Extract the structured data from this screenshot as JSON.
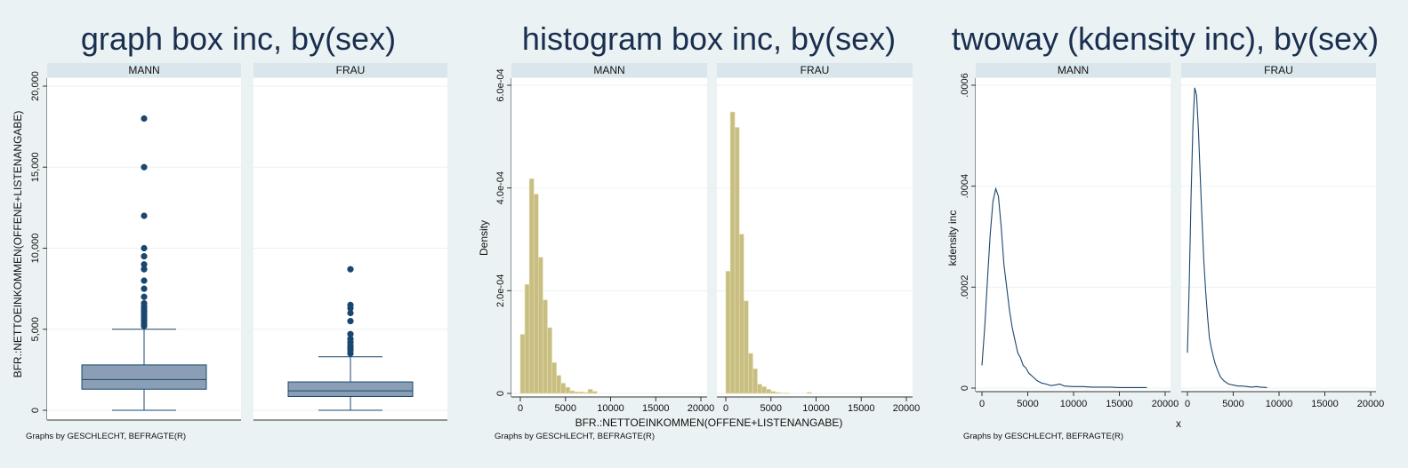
{
  "colors": {
    "background": "#eaf2f3",
    "strip": "#d9e6eb",
    "box": "#8a9fb5",
    "line": "#1a476f",
    "hist": "#c8be82",
    "title": "#1a2e4f"
  },
  "chart_data": [
    {
      "type": "box",
      "title": "graph box inc, by(sex)",
      "ylabel": "BFR.:NETTOEINKOMMEN(OFFENE+LISTENANGABE)",
      "xlabel": "",
      "ylim": [
        0,
        20000
      ],
      "yticks": [
        0,
        5000,
        10000,
        15000,
        20000
      ],
      "ytick_labels": [
        "0",
        "5,000",
        "10,000",
        "15,000",
        "20,000"
      ],
      "panels": [
        "MANN",
        "FRAU"
      ],
      "note": "Graphs by GESCHLECHT, BEFRAGTE(R)",
      "series": [
        {
          "name": "MANN",
          "min": 0,
          "q1": 1300,
          "median": 1900,
          "q3": 2800,
          "max": 5000,
          "outliers": [
            5200,
            5350,
            5500,
            5650,
            5800,
            5950,
            6100,
            6250,
            6400,
            6600,
            7000,
            7500,
            8000,
            8700,
            9000,
            9500,
            10000,
            12000,
            15000,
            18000
          ]
        },
        {
          "name": "FRAU",
          "min": 0,
          "q1": 850,
          "median": 1200,
          "q3": 1750,
          "max": 3300,
          "outliers": [
            3500,
            3700,
            3850,
            4000,
            4200,
            4400,
            4700,
            5500,
            6000,
            6300,
            6500,
            8700
          ]
        }
      ]
    },
    {
      "type": "bar",
      "title": "histogram box inc, by(sex)",
      "ylabel": "Density",
      "xlabel": "BFR.:NETTOEINKOMMEN(OFFENE+LISTENANGABE)",
      "xlim": [
        0,
        20000
      ],
      "ylim": [
        0,
        0.0006
      ],
      "xticks": [
        0,
        5000,
        10000,
        15000,
        20000
      ],
      "xtick_labels": [
        "0",
        "5000",
        "10000",
        "15000",
        "20000"
      ],
      "yticks": [
        0,
        0.0002,
        0.0004,
        0.0006
      ],
      "ytick_labels": [
        "0",
        "2.0e-04",
        "4.0e-04",
        "6.0e-04"
      ],
      "bin_width": 500,
      "x": [
        0,
        500,
        1000,
        1500,
        2000,
        2500,
        3000,
        3500,
        4000,
        4500,
        5000,
        5500,
        6000,
        6500,
        7000,
        7500,
        8000,
        8500,
        9000,
        9500,
        10000,
        10500,
        11000
      ],
      "panels": [
        "MANN",
        "FRAU"
      ],
      "note": "Graphs by GESCHLECHT, BEFRAGTE(R)",
      "series": [
        {
          "name": "MANN",
          "values": [
            0.000115,
            0.000212,
            0.000418,
            0.000388,
            0.000265,
            0.000182,
            0.000128,
            6e-05,
            3.5e-05,
            2e-05,
            1.2e-05,
            5e-06,
            3e-06,
            3e-06,
            2e-06,
            8e-06,
            4e-06,
            0,
            0,
            0,
            0,
            0,
            0
          ]
        },
        {
          "name": "FRAU",
          "values": [
            0.000238,
            0.000548,
            0.000518,
            0.00031,
            0.00018,
            7.8e-05,
            4.8e-05,
            1.8e-05,
            1.3e-05,
            8e-06,
            4e-06,
            2e-06,
            1e-06,
            1e-06,
            0,
            0,
            0,
            0,
            2e-06,
            0,
            0,
            0,
            0
          ]
        }
      ]
    },
    {
      "type": "line",
      "title": "twoway (kdensity inc), by(sex)",
      "ylabel": "kdensity inc",
      "xlabel": "x",
      "xlim": [
        0,
        20000
      ],
      "ylim": [
        0,
        0.0006
      ],
      "xticks": [
        0,
        5000,
        10000,
        15000,
        20000
      ],
      "xtick_labels": [
        "0",
        "5000",
        "10000",
        "15000",
        "20000"
      ],
      "yticks": [
        0,
        0.0002,
        0.0004,
        0.0006
      ],
      "ytick_labels": [
        "0",
        ".0002",
        ".0004",
        ".0006"
      ],
      "panels": [
        "MANN",
        "FRAU"
      ],
      "note": "Graphs by GESCHLECHT, BEFRAGTE(R)",
      "series": [
        {
          "name": "MANN",
          "x": [
            0,
            300,
            600,
            900,
            1200,
            1500,
            1800,
            2100,
            2400,
            2700,
            3000,
            3300,
            3600,
            3900,
            4200,
            4500,
            4800,
            5100,
            5400,
            5700,
            6000,
            6500,
            7000,
            7500,
            8000,
            8500,
            9000,
            10000,
            11000,
            12000,
            13000,
            14000,
            15000,
            16000,
            17000,
            18000
          ],
          "y": [
            4.5e-05,
            0.00012,
            0.000215,
            0.000305,
            0.00037,
            0.000395,
            0.00038,
            0.00032,
            0.000245,
            0.0002,
            0.000155,
            0.00012,
            9.5e-05,
            7e-05,
            6e-05,
            4.5e-05,
            4e-05,
            3e-05,
            2.5e-05,
            2e-05,
            1.5e-05,
            1e-05,
            8e-06,
            5e-06,
            6e-06,
            8e-06,
            4e-06,
            3e-06,
            3e-06,
            2e-06,
            2e-06,
            2e-06,
            1e-06,
            1e-06,
            1e-06,
            1e-06
          ]
        },
        {
          "name": "FRAU",
          "x": [
            0,
            200,
            400,
            600,
            800,
            1000,
            1200,
            1400,
            1600,
            1800,
            2000,
            2200,
            2400,
            2600,
            2800,
            3000,
            3300,
            3600,
            4000,
            4500,
            5000,
            5500,
            6000,
            6500,
            7000,
            7500,
            8000,
            8700
          ],
          "y": [
            7e-05,
            0.00021,
            0.00038,
            0.00052,
            0.000595,
            0.00058,
            0.00051,
            0.00042,
            0.00033,
            0.00025,
            0.00019,
            0.00014,
            0.0001,
            8e-05,
            6.5e-05,
            5e-05,
            3.5e-05,
            2.2e-05,
            1.4e-05,
            8e-06,
            6e-06,
            4e-06,
            4e-06,
            3e-06,
            2e-06,
            3e-06,
            2e-06,
            1e-06
          ]
        }
      ]
    }
  ]
}
